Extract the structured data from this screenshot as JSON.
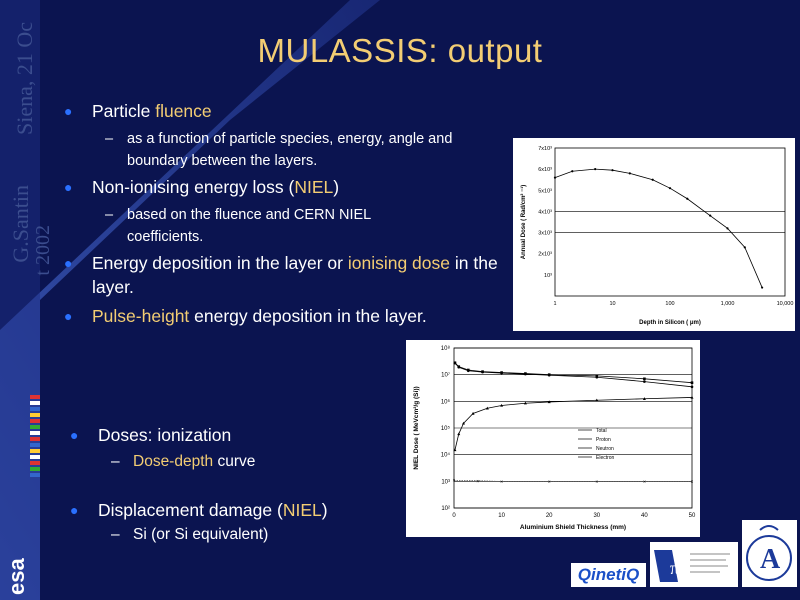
{
  "sidebar": {
    "author": "G.Santin",
    "location_date": "Siena, 21 Oc",
    "year": "t 2002",
    "esa_logo": "esa"
  },
  "title": "MULASSIS: output",
  "bullets": [
    {
      "pre": "Particle ",
      "hl": "fluence",
      "post": ""
    },
    {
      "pre": "Non-ionising energy loss (",
      "hl": "NIEL",
      "post": ")"
    },
    {
      "pre": "Energy deposition in the layer or ",
      "hl": "ionising dose",
      "post": " in the layer."
    },
    {
      "pre": "",
      "hl": "Pulse-height",
      "post": " energy deposition in the layer."
    }
  ],
  "subs": [
    "as a function of particle species, energy, angle and boundary between the layers.",
    "based on the fluence and CERN NIEL coefficients."
  ],
  "lower": {
    "doses": "Doses: ionization",
    "dose_depth_hl": "Dose-depth",
    "dose_depth_rest": " curve",
    "displacement_pre": "Displacement damage (",
    "displacement_hl": "NIEL",
    "displacement_post": ")",
    "si": "Si (or Si equivalent)"
  },
  "logos": {
    "qinetiq": "QinetiQ",
    "pi": "π",
    "a": "A"
  },
  "colors": {
    "background": "#0b1450",
    "title": "#f3cd73",
    "highlight": "#f3cd73",
    "bullet": "#2a70ff",
    "text": "#ffffff"
  },
  "chart_data": [
    {
      "type": "line",
      "title": "",
      "xlabel": "Depth in Silicon ( μm)",
      "ylabel": "Annual Dose ( Rad/cm² ⁻¹)",
      "x_ticks": [
        "1",
        "10",
        "100",
        "1,000",
        "10,000"
      ],
      "y_ticks": [
        "10³",
        "2x10³",
        "3x10³",
        "4x10³",
        "5x10³",
        "6x10³",
        "7x10³"
      ],
      "x_scale": "log",
      "xlim": [
        1,
        10000
      ],
      "ylim": [
        0,
        7000
      ],
      "grid": true,
      "series": [
        {
          "x": [
            1,
            2,
            5,
            10,
            20,
            50,
            100,
            200,
            500,
            1000,
            2000,
            4000
          ],
          "y": [
            5600,
            5900,
            6000,
            5950,
            5800,
            5500,
            5100,
            4600,
            3800,
            3200,
            2300,
            400
          ]
        }
      ]
    },
    {
      "type": "line",
      "title": "",
      "xlabel": "Aluminium Shield Thickness (mm)",
      "ylabel": "NIEL Dose ( MeVcm²/g (Si))",
      "x_ticks": [
        "0",
        "10",
        "20",
        "30",
        "40",
        "50"
      ],
      "y_ticks": [
        "10²",
        "10³",
        "10⁴",
        "10⁵",
        "10⁶",
        "10⁷",
        "10⁸"
      ],
      "y_scale": "log",
      "xlim": [
        0,
        50
      ],
      "ylim": [
        100,
        100000000
      ],
      "grid": true,
      "legend": "right",
      "series": [
        {
          "name": "Total",
          "x": [
            0.2,
            1,
            3,
            6,
            10,
            15,
            20,
            30,
            40,
            50
          ],
          "y": [
            28000000,
            20000000,
            15000000,
            13000000,
            12000000,
            11000000,
            10000000,
            9000000,
            7000000,
            5000000
          ]
        },
        {
          "name": "Proton",
          "x": [
            0.2,
            1,
            3,
            6,
            10,
            15,
            20,
            30,
            40,
            50
          ],
          "y": [
            27000000,
            19000000,
            14000000,
            12500000,
            11500000,
            10500000,
            9500000,
            8000000,
            5500000,
            3500000
          ]
        },
        {
          "name": "Neutron",
          "x": [
            0.2,
            1,
            2,
            4,
            7,
            10,
            15,
            20,
            30,
            40,
            50
          ],
          "y": [
            15000,
            60000,
            150000,
            350000,
            550000,
            700000,
            850000,
            950000,
            1100000,
            1250000,
            1400000
          ]
        },
        {
          "name": "Electron",
          "x": [
            0,
            5,
            10,
            20,
            30,
            40,
            50
          ],
          "y": [
            1100,
            1050,
            1000,
            1000,
            1000,
            1000,
            1000
          ]
        }
      ]
    }
  ]
}
